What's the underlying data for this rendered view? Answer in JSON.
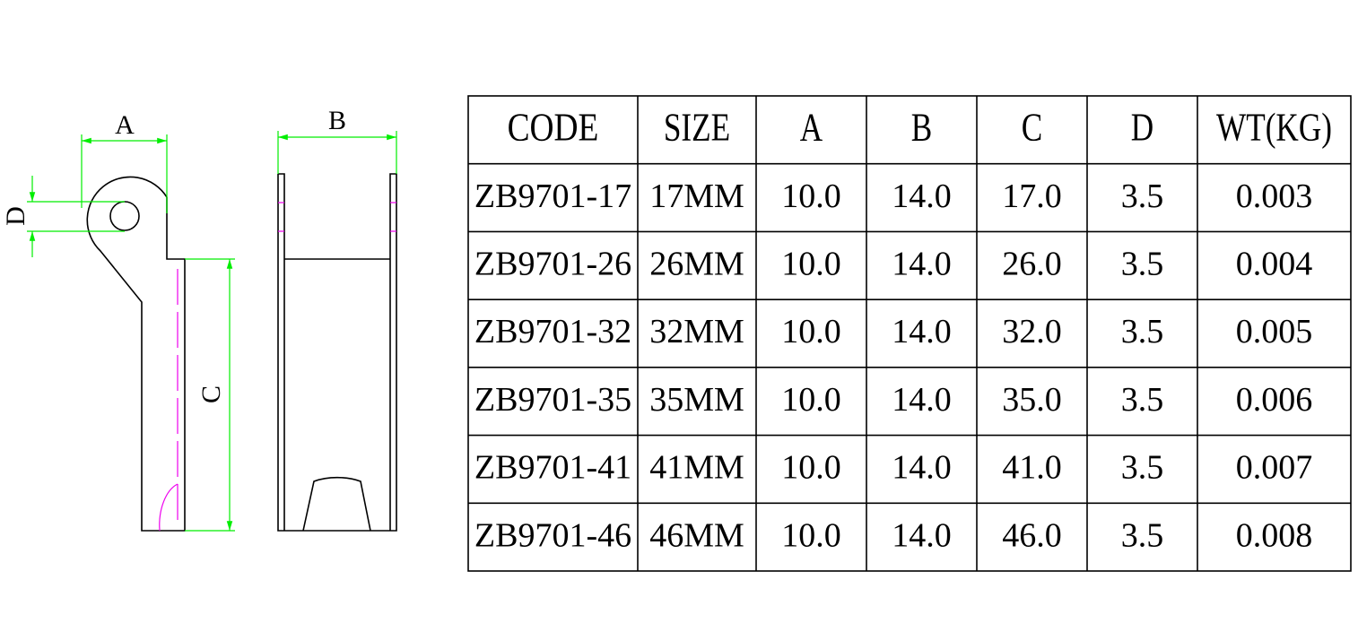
{
  "drawing": {
    "labels": {
      "a": "A",
      "b": "B",
      "c": "C",
      "d": "D"
    }
  },
  "table": {
    "header": [
      "CODE",
      "SIZE",
      "A",
      "B",
      "C",
      "D",
      "WT(KG)"
    ],
    "rows": [
      [
        "ZB9701-17",
        "17MM",
        "10.0",
        "14.0",
        "17.0",
        "3.5",
        "0.003"
      ],
      [
        "ZB9701-26",
        "26MM",
        "10.0",
        "14.0",
        "26.0",
        "3.5",
        "0.004"
      ],
      [
        "ZB9701-32",
        "32MM",
        "10.0",
        "14.0",
        "32.0",
        "3.5",
        "0.005"
      ],
      [
        "ZB9701-35",
        "35MM",
        "10.0",
        "14.0",
        "35.0",
        "3.5",
        "0.006"
      ],
      [
        "ZB9701-41",
        "41MM",
        "10.0",
        "14.0",
        "41.0",
        "3.5",
        "0.007"
      ],
      [
        "ZB9701-46",
        "46MM",
        "10.0",
        "14.0",
        "46.0",
        "3.5",
        "0.008"
      ]
    ]
  }
}
